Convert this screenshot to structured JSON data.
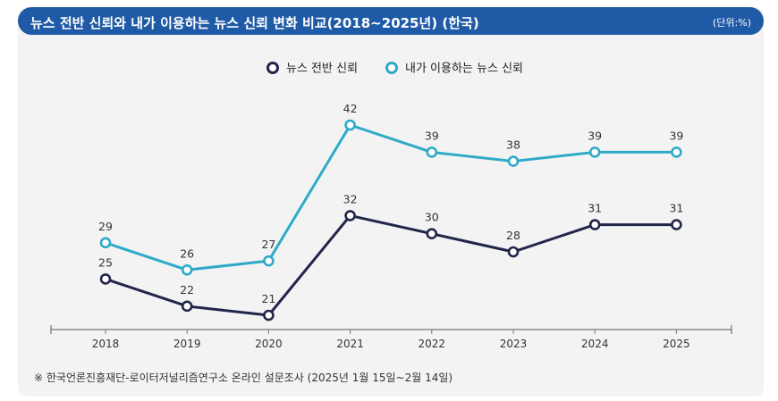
{
  "header": {
    "title": "뉴스 전반 신뢰와 내가 이용하는 뉴스 신뢰 변화 비교(2018~2025년) (한국)",
    "unit": "(단위:%)"
  },
  "source": "※ 한국언론진흥재단-로이터저널리즘연구소 온라인 설문조사 (2025년 1월 15일~2월 14일)",
  "colors": {
    "title_bar": "#1f5aa6",
    "series_overall": "#22254a",
    "series_own": "#2eaac9",
    "card_bg": "#f3f3f4"
  },
  "chart_data": {
    "type": "line",
    "title": "뉴스 전반 신뢰와 내가 이용하는 뉴스 신뢰 변화 비교(2018~2025년) (한국)",
    "categories": [
      "2018",
      "2019",
      "2020",
      "2021",
      "2022",
      "2023",
      "2024",
      "2025"
    ],
    "series": [
      {
        "name": "뉴스 전반 신뢰",
        "values": [
          25,
          22,
          21,
          32,
          30,
          28,
          31,
          31
        ]
      },
      {
        "name": "내가 이용하는 뉴스 신뢰",
        "values": [
          29,
          26,
          27,
          42,
          39,
          38,
          39,
          39
        ]
      }
    ],
    "ylim": [
      20,
      43
    ],
    "legend": "top-center",
    "grid": false
  }
}
